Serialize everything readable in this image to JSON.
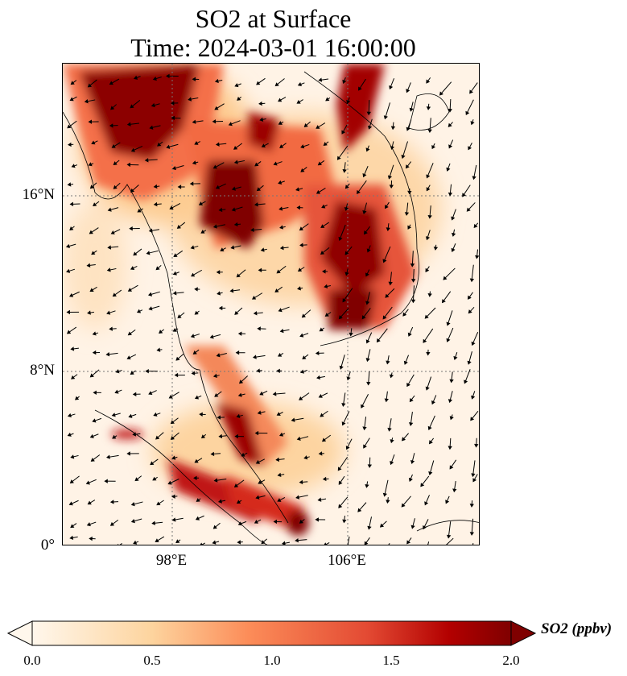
{
  "title": {
    "line1": "SO2 at Surface",
    "line2": "Time: 2024-03-01 16:00:00"
  },
  "map": {
    "extent_lon": [
      93,
      112
    ],
    "extent_lat": [
      0,
      22
    ],
    "x_ticks": [
      {
        "value": 98,
        "label": "98°E"
      },
      {
        "value": 106,
        "label": "106°E"
      }
    ],
    "y_ticks": [
      {
        "value": 0,
        "label": "0°"
      },
      {
        "value": 8,
        "label": "8°N"
      },
      {
        "value": 16,
        "label": "16°N"
      }
    ],
    "gridlines": "dotted"
  },
  "colorbar": {
    "label": "SO2 (ppbv)",
    "min": 0.0,
    "max": 2.0,
    "extend": "both",
    "colormap": "OrRd",
    "ticks": [
      "0.0",
      "0.5",
      "1.0",
      "1.5",
      "2.0"
    ]
  }
}
